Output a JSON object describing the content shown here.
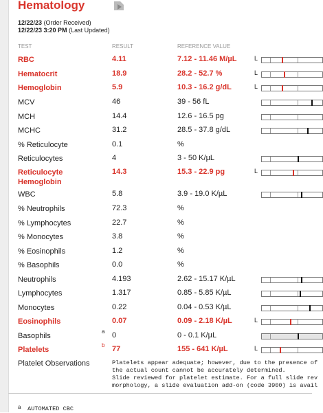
{
  "header": {
    "title": "Hematology",
    "order_date": "12/22/23",
    "order_label": "(Order Received)",
    "updated_date": "12/22/23 3:20 PM",
    "updated_label": "(Last Updated)"
  },
  "table": {
    "columns": [
      "TEST",
      "RESULT",
      "REFERENCE VALUE"
    ],
    "highlight_color": "#d9342b",
    "rows": [
      {
        "test": "RBC",
        "result": "4.11",
        "reference": "7.12 - 11.46 M/µL",
        "flag": "L",
        "abnormal": true
      },
      {
        "test": "Hematocrit",
        "result": "18.9",
        "reference": "28.2 - 52.7 %",
        "flag": "L",
        "abnormal": true
      },
      {
        "test": "Hemoglobin",
        "result": "5.9",
        "reference": "10.3 - 16.2 g/dL",
        "flag": "L",
        "abnormal": true
      },
      {
        "test": "MCV",
        "result": "46",
        "reference": "39 - 56 fL"
      },
      {
        "test": "MCH",
        "result": "14.4",
        "reference": "12.6 - 16.5 pg"
      },
      {
        "test": "MCHC",
        "result": "31.2",
        "reference": "28.5 - 37.8 g/dL"
      },
      {
        "test": "% Reticulocyte",
        "result": "0.1",
        "reference": "%"
      },
      {
        "test": "Reticulocytes",
        "result": "4",
        "reference": "3 - 50 K/µL"
      },
      {
        "test": "Reticulocyte Hemoglobin",
        "result": "14.3",
        "reference": "15.3 - 22.9 pg",
        "flag": "L",
        "abnormal": true
      },
      {
        "test": "WBC",
        "result": "5.8",
        "reference": "3.9 - 19.0 K/µL"
      },
      {
        "test": "% Neutrophils",
        "result": "72.3",
        "reference": "%"
      },
      {
        "test": "% Lymphocytes",
        "result": "22.7",
        "reference": "%"
      },
      {
        "test": "% Monocytes",
        "result": "3.8",
        "reference": "%"
      },
      {
        "test": "% Eosinophils",
        "result": "1.2",
        "reference": "%"
      },
      {
        "test": "% Basophils",
        "result": "0.0",
        "reference": "%"
      },
      {
        "test": "Neutrophils",
        "result": "4.193",
        "reference": "2.62 - 15.17 K/µL"
      },
      {
        "test": "Lymphocytes",
        "result": "1.317",
        "reference": "0.85 - 5.85 K/µL"
      },
      {
        "test": "Monocytes",
        "result": "0.22",
        "reference": "0.04 - 0.53 K/µL"
      },
      {
        "test": "Eosinophils",
        "result": "0.07",
        "reference": "0.09 - 2.18 K/µL",
        "flag": "L",
        "abnormal": true
      },
      {
        "test": "Basophils",
        "note": "a",
        "result": "0",
        "reference": "0 - 0.1 K/µL"
      },
      {
        "test": "Platelets",
        "note": "b",
        "result": "77",
        "reference": "155 - 641 K/µL",
        "flag": "L",
        "abnormal": true
      },
      {
        "test": "Platelet Observations",
        "comment": [
          "Platelets appear adequate; however, due to the presence of",
          "the actual count cannot be accurately determined.",
          "Slide reviewed for platelet estimate. For a full slide rev",
          "morphology, a slide evaluation add-on (code 3900) is avail"
        ]
      }
    ]
  },
  "footnotes": [
    {
      "mark": "a",
      "text": "AUTOMATED CBC"
    }
  ]
}
